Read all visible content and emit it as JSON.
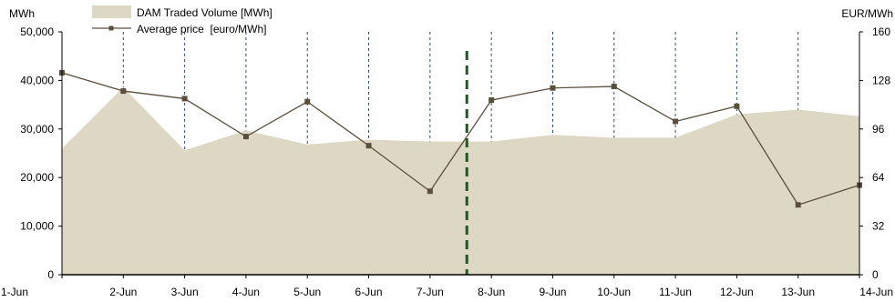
{
  "chart_data": {
    "type": "area+line",
    "categories": [
      "1-Jun",
      "2-Jun",
      "3-Jun",
      "4-Jun",
      "5-Jun",
      "6-Jun",
      "7-Jun",
      "8-Jun",
      "9-Jun",
      "10-Jun",
      "11-Jun",
      "12-Jun",
      "13-Jun",
      "14-Jun"
    ],
    "series": [
      {
        "name": "DAM Traded Volume [MWh]",
        "type": "area",
        "axis": "left",
        "color": "#ddd8c4",
        "values": [
          26000,
          38600,
          25600,
          29700,
          26800,
          27800,
          27400,
          27400,
          28800,
          28200,
          28200,
          33000,
          34000,
          32600
        ]
      },
      {
        "name": "Average price  [euro/MWh]",
        "type": "line",
        "axis": "right",
        "color": "#5a4e3c",
        "values": [
          133,
          121,
          116,
          91,
          114,
          85,
          55,
          115,
          123,
          124,
          101,
          111,
          46,
          59
        ]
      }
    ],
    "left_axis": {
      "label": "MWh",
      "ylim": [
        0,
        50000
      ],
      "ticks": [
        "0",
        "10,000",
        "20,000",
        "30,000",
        "40,000",
        "50,000"
      ]
    },
    "right_axis": {
      "label": "EUR/MWh",
      "ylim": [
        0,
        160
      ],
      "ticks": [
        "0",
        "32",
        "64",
        "96",
        "128",
        "160"
      ]
    },
    "marker_line": {
      "position_between": [
        "7-Jun",
        "8-Jun"
      ],
      "fraction": 0.6,
      "color": "#1e5a1e",
      "style": "dashed"
    },
    "vertical_gridlines": "dashed blue at each category",
    "legend_placement": "top-left"
  }
}
